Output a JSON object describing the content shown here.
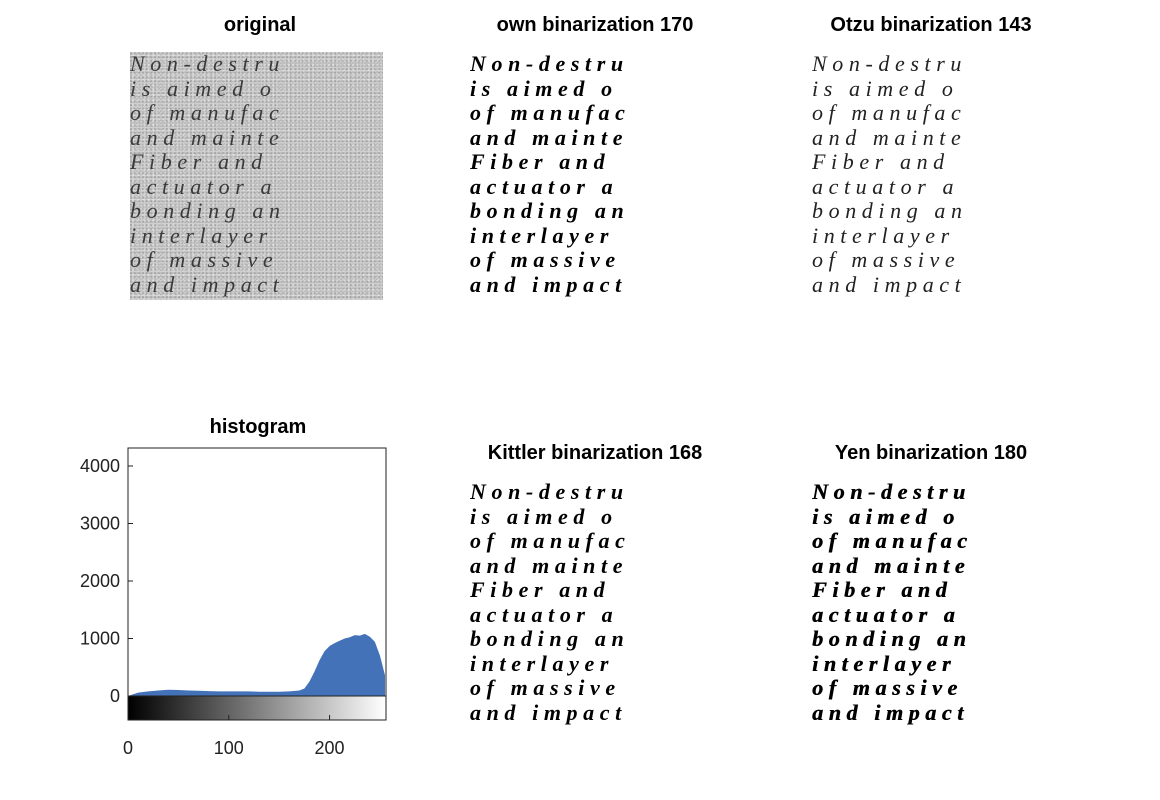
{
  "panels": {
    "original": {
      "title": "original"
    },
    "own": {
      "title": "own binarization 170"
    },
    "otzu": {
      "title": "Otzu binarization 143"
    },
    "kittler": {
      "title": "Kittler binarization 168"
    },
    "yen": {
      "title": "Yen binarization 180"
    },
    "histogram": {
      "title": "histogram"
    }
  },
  "document_lines": [
    "Non-destru",
    "is aimed o",
    "of manufac",
    "and mainte",
    "Fiber and ",
    "actuator a",
    "bonding an",
    "interlayer",
    "of massive",
    "and impact"
  ],
  "chart_data": {
    "type": "area",
    "title": "histogram",
    "xlabel": "",
    "ylabel": "",
    "xlim": [
      0,
      256
    ],
    "ylim": [
      0,
      4000
    ],
    "xticks": [
      0,
      100,
      200
    ],
    "yticks": [
      0,
      1000,
      2000,
      3000,
      4000
    ],
    "colorbar": "grayscale 0 to 255 along x-axis",
    "fill_color": "#4472b8",
    "x": [
      0,
      10,
      20,
      30,
      40,
      50,
      60,
      70,
      80,
      90,
      100,
      110,
      120,
      130,
      140,
      150,
      160,
      170,
      175,
      180,
      185,
      190,
      195,
      200,
      205,
      210,
      215,
      220,
      225,
      230,
      235,
      240,
      245,
      250,
      255
    ],
    "values": [
      0,
      60,
      80,
      95,
      110,
      105,
      95,
      90,
      85,
      80,
      80,
      80,
      80,
      75,
      75,
      75,
      80,
      95,
      130,
      250,
      420,
      620,
      780,
      870,
      920,
      960,
      1000,
      1020,
      1060,
      1050,
      1080,
      1030,
      940,
      700,
      360
    ]
  }
}
